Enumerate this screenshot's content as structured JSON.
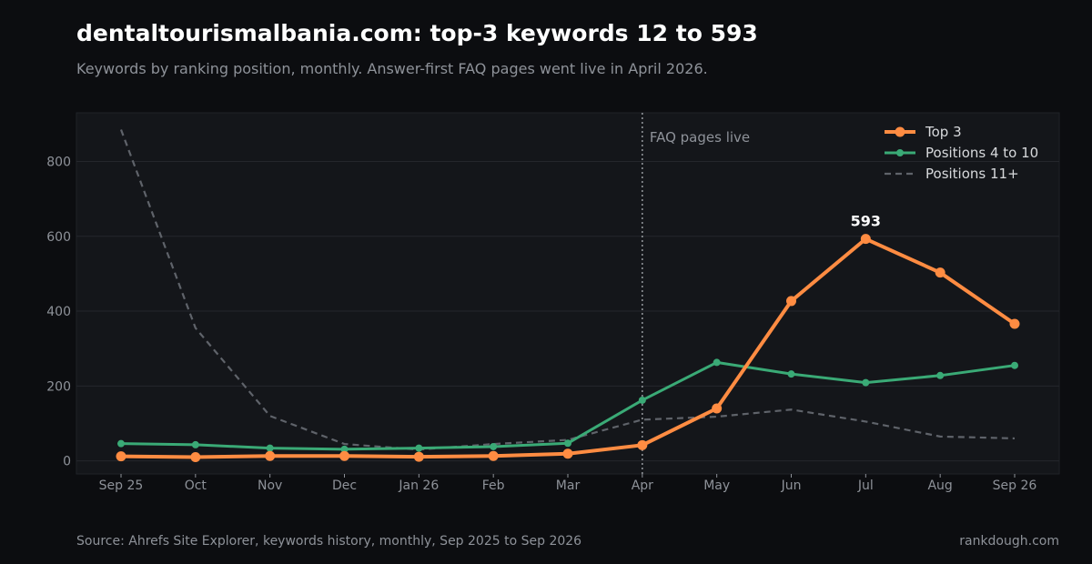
{
  "title": "dentaltourismalbania.com: top-3 keywords 12 to 593",
  "subtitle": "Keywords by ranking position, monthly. Answer-first FAQ pages went live in April 2026.",
  "source": "Source: Ahrefs Site Explorer, keywords history, monthly, Sep 2025 to Sep 2026",
  "credit": "rankdough.com",
  "colors": {
    "background": "#0c0d10",
    "plot_background": "#14161a",
    "grid": "#24272c",
    "top3": "#ff8c42",
    "pos4to10": "#3aaa76",
    "pos11plus": "#5f636a"
  },
  "chart_data": {
    "type": "line",
    "categories": [
      "Sep 25",
      "Oct",
      "Nov",
      "Dec",
      "Jan 26",
      "Feb",
      "Mar",
      "Apr",
      "May",
      "Jun",
      "Jul",
      "Aug",
      "Sep 26"
    ],
    "ylim": [
      -35,
      930
    ],
    "yticks": [
      0,
      200,
      400,
      600,
      800
    ],
    "grid": true,
    "legend_position": "top-right",
    "series": [
      {
        "name": "Top 3",
        "key": "top3",
        "style": "solid-thick-markers",
        "values": [
          12,
          10,
          13,
          13,
          11,
          13,
          19,
          42,
          140,
          427,
          593,
          503,
          366
        ]
      },
      {
        "name": "Positions 4 to 10",
        "key": "pos4to10",
        "style": "solid-markers",
        "values": [
          46,
          43,
          34,
          31,
          34,
          38,
          47,
          162,
          263,
          232,
          209,
          228,
          255
        ]
      },
      {
        "name": "Positions 11+",
        "key": "pos11plus",
        "style": "dashed",
        "values": [
          885,
          355,
          120,
          45,
          30,
          45,
          56,
          110,
          118,
          137,
          105,
          65,
          60
        ]
      }
    ],
    "annotations": [
      {
        "type": "vline",
        "at": "Apr",
        "label": "FAQ pages live"
      },
      {
        "type": "point_label",
        "at": "Jul",
        "series": "Top 3",
        "label": "593"
      }
    ]
  }
}
